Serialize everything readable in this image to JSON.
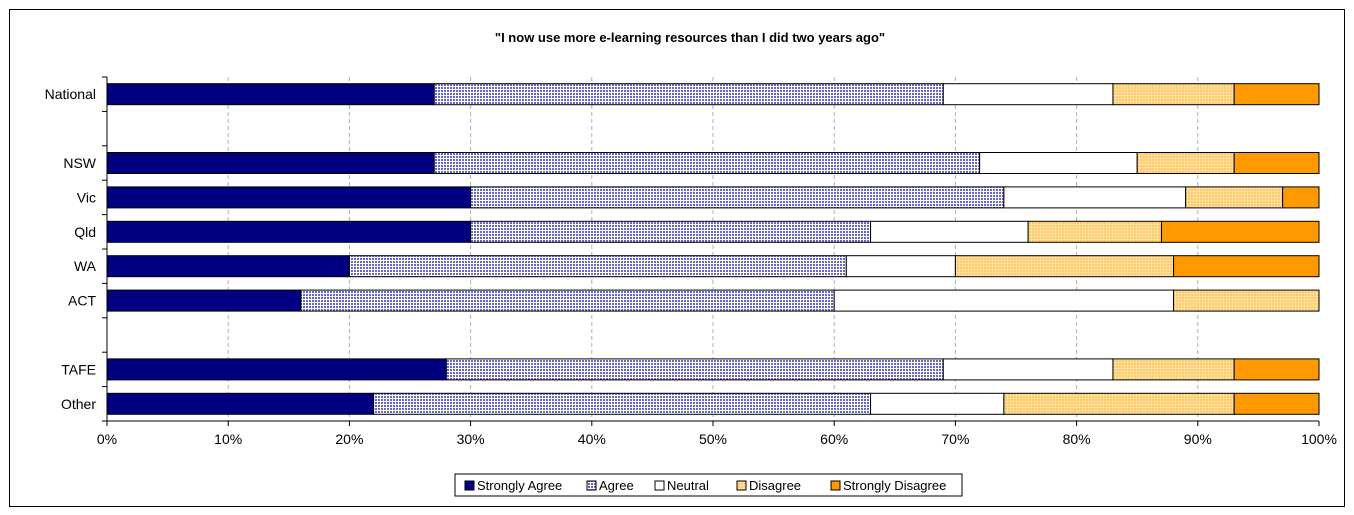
{
  "chart_data": {
    "type": "bar",
    "orientation": "horizontal",
    "stacked": "percent",
    "title": "\"I now use more e-learning resources than I did two years ago\"",
    "xlabel": "",
    "ylabel": "",
    "xlim": [
      0,
      100
    ],
    "x_ticks": [
      "0%",
      "10%",
      "20%",
      "30%",
      "40%",
      "50%",
      "60%",
      "70%",
      "80%",
      "90%",
      "100%"
    ],
    "categories": [
      "National",
      "",
      "NSW",
      "Vic",
      "Qld",
      "WA",
      "ACT",
      "",
      "TAFE",
      "Other"
    ],
    "series": [
      {
        "name": "Strongly Agree",
        "color": "#000080",
        "pattern": "solid",
        "values": [
          27,
          null,
          27,
          30,
          30,
          20,
          16,
          null,
          28,
          22
        ]
      },
      {
        "name": "Agree",
        "color": "#9999ff",
        "pattern": "checker",
        "values": [
          42,
          null,
          45,
          44,
          33,
          41,
          44,
          null,
          41,
          41
        ]
      },
      {
        "name": "Neutral",
        "color": "#ffffff",
        "pattern": "solid",
        "values": [
          14,
          null,
          13,
          15,
          13,
          9,
          28,
          null,
          14,
          11
        ]
      },
      {
        "name": "Disagree",
        "color": "#ffcc66",
        "pattern": "checker",
        "values": [
          10,
          null,
          8,
          8,
          11,
          18,
          12,
          null,
          10,
          19
        ]
      },
      {
        "name": "Strongly Disagree",
        "color": "#ff9900",
        "pattern": "solid",
        "values": [
          7,
          null,
          7,
          3,
          13,
          12,
          0,
          null,
          7,
          7
        ]
      }
    ],
    "grid": true,
    "legend_position": "bottom"
  }
}
